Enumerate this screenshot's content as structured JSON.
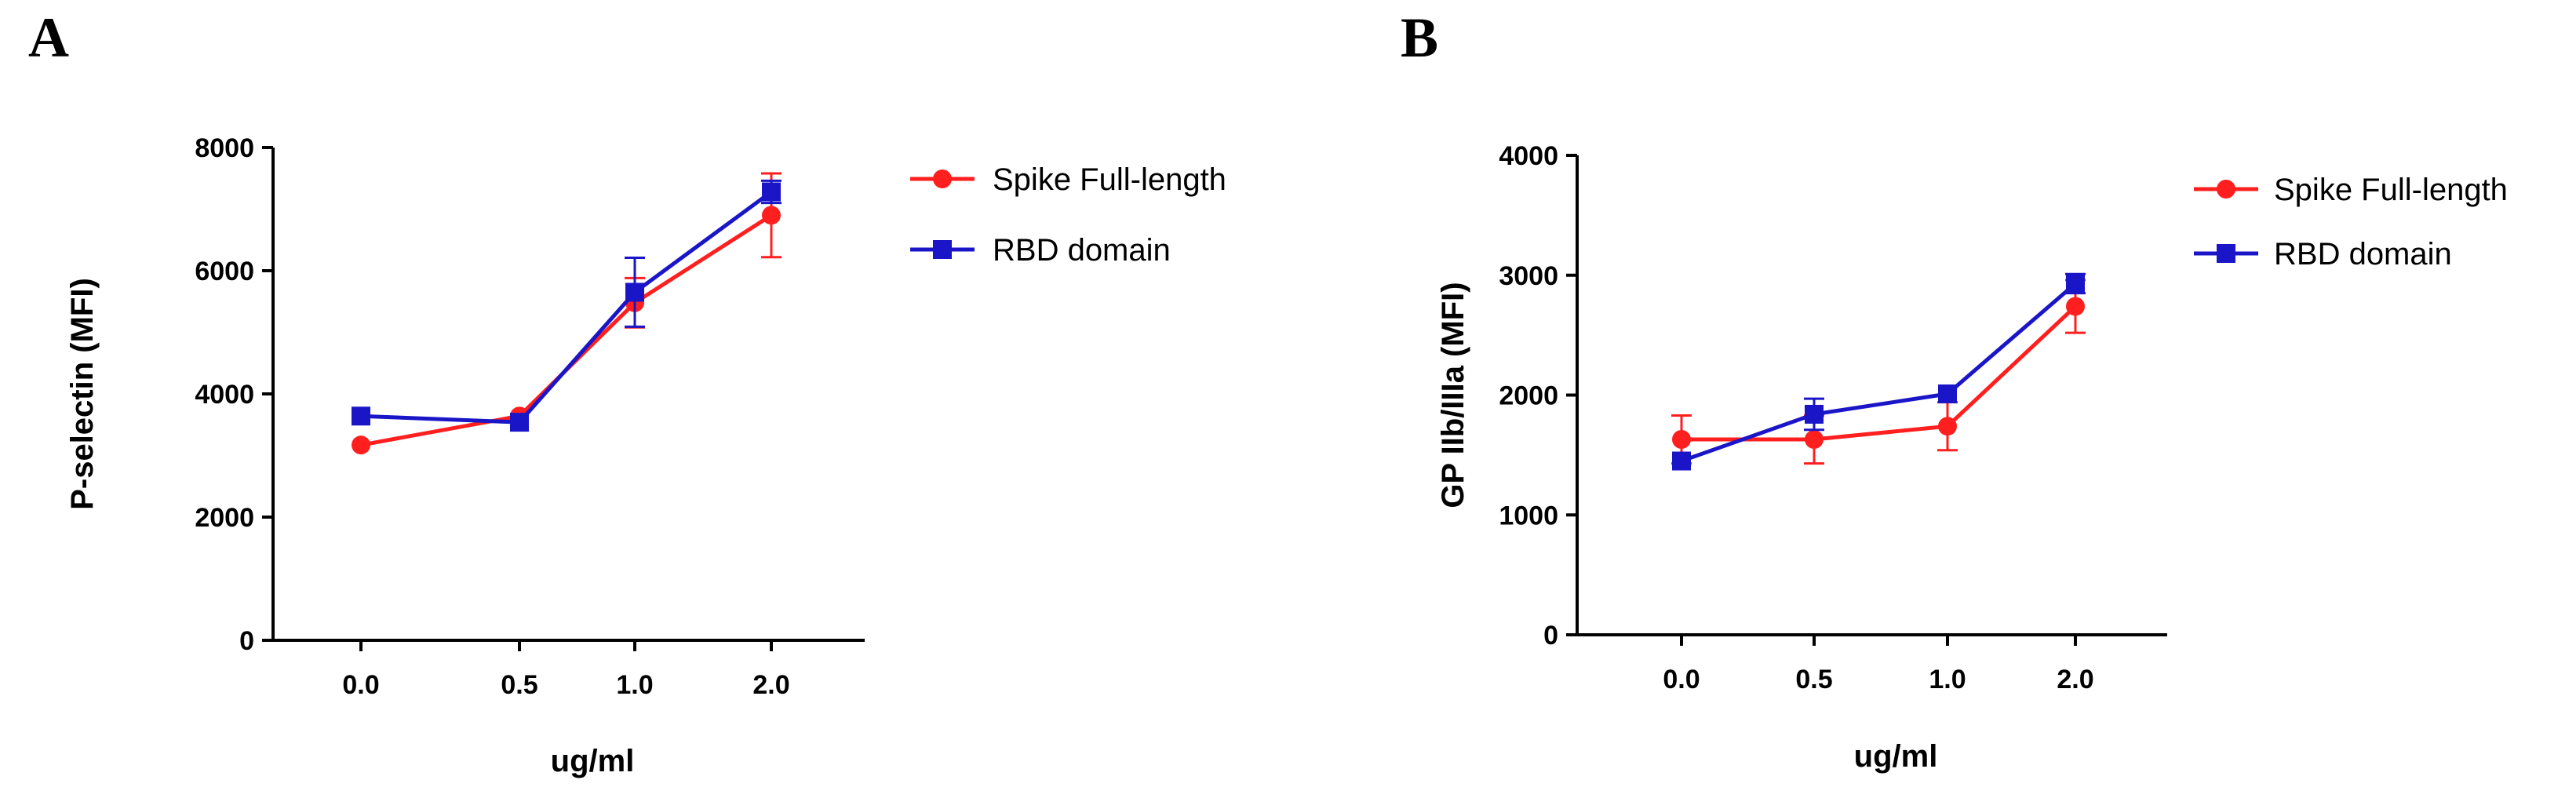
{
  "panels": [
    {
      "letter": "A"
    },
    {
      "letter": "B"
    }
  ],
  "colors": {
    "spike": "#ff1f1f",
    "rbd": "#1a16c8"
  },
  "chart_data": [
    {
      "type": "line",
      "title": "",
      "xlabel": "ug/ml",
      "ylabel": "P-selectin (MFI)",
      "categories": [
        "0.0",
        "0.5",
        "1.0",
        "2.0"
      ],
      "ylim": [
        0,
        8000
      ],
      "yticks": [
        "0",
        "2000",
        "4000",
        "6000",
        "8000"
      ],
      "legend_position": "top-right",
      "series": [
        {
          "name": "Spike Full-length",
          "marker": "circle",
          "color": "#ff1f1f",
          "values": [
            3170,
            3640,
            5480,
            6900
          ],
          "errors": [
            0,
            0,
            400,
            680
          ]
        },
        {
          "name": "RBD domain",
          "marker": "square",
          "color": "#1a16c8",
          "values": [
            3640,
            3540,
            5650,
            7280
          ],
          "errors": [
            0,
            0,
            560,
            180
          ]
        }
      ]
    },
    {
      "type": "line",
      "title": "",
      "xlabel": "ug/ml",
      "ylabel": "GP IIb/IIIa (MFI)",
      "categories": [
        "0.0",
        "0.5",
        "1.0",
        "2.0"
      ],
      "ylim": [
        0,
        4000
      ],
      "yticks": [
        "0",
        "1000",
        "2000",
        "3000",
        "4000"
      ],
      "legend_position": "top-right",
      "series": [
        {
          "name": "Spike Full-length",
          "marker": "circle",
          "color": "#ff1f1f",
          "values": [
            1630,
            1630,
            1740,
            2740
          ],
          "errors": [
            200,
            200,
            200,
            220
          ]
        },
        {
          "name": "RBD domain",
          "marker": "square",
          "color": "#1a16c8",
          "values": [
            1450,
            1840,
            2010,
            2930
          ],
          "errors": [
            0,
            130,
            0,
            80
          ]
        }
      ]
    }
  ]
}
